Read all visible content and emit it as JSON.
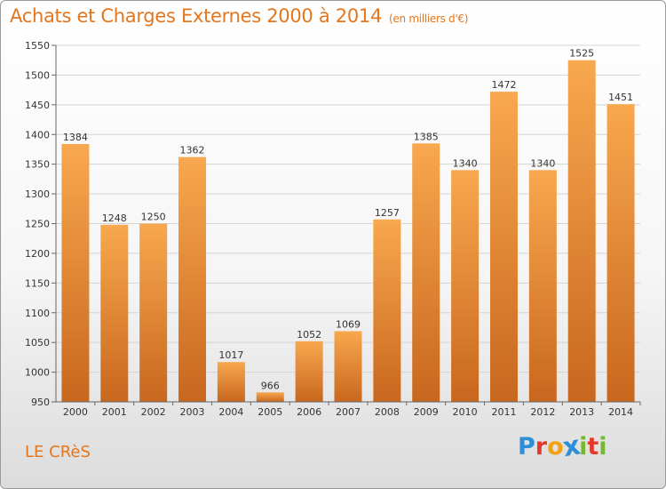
{
  "header": {
    "title": "Achats et Charges Externes 2000 à 2014",
    "unit": "(en milliers d'€)"
  },
  "footer": {
    "commune": "LE CRèS",
    "brand": "Proxiti",
    "brand_letters": [
      {
        "ch": "P",
        "color": "#2e8fd6"
      },
      {
        "ch": "r",
        "color": "#e5392b"
      },
      {
        "ch": "o",
        "color": "#f2a112"
      },
      {
        "ch": "x",
        "color": "#2e8fd6"
      },
      {
        "ch": "i",
        "color": "#74b833"
      },
      {
        "ch": "t",
        "color": "#e5392b"
      },
      {
        "ch": "i",
        "color": "#74b833"
      }
    ]
  },
  "colors": {
    "bar_top": "#f8a84e",
    "bar_bottom": "#c8671e",
    "text_accent": "#e4761d"
  },
  "chart_data": {
    "type": "bar",
    "title": "Achats et Charges Externes 2000 à 2014",
    "subtitle": "(en milliers d'€)",
    "categories": [
      "2000",
      "2001",
      "2002",
      "2003",
      "2004",
      "2005",
      "2006",
      "2007",
      "2008",
      "2009",
      "2010",
      "2011",
      "2012",
      "2013",
      "2014"
    ],
    "values": [
      1384,
      1248,
      1250,
      1362,
      1017,
      966,
      1052,
      1069,
      1257,
      1385,
      1340,
      1472,
      1340,
      1525,
      1451
    ],
    "ylim": [
      950,
      1550
    ],
    "yticks": [
      950,
      1000,
      1050,
      1100,
      1150,
      1200,
      1250,
      1300,
      1350,
      1400,
      1450,
      1500,
      1550
    ],
    "grid": true,
    "legend": "none"
  }
}
